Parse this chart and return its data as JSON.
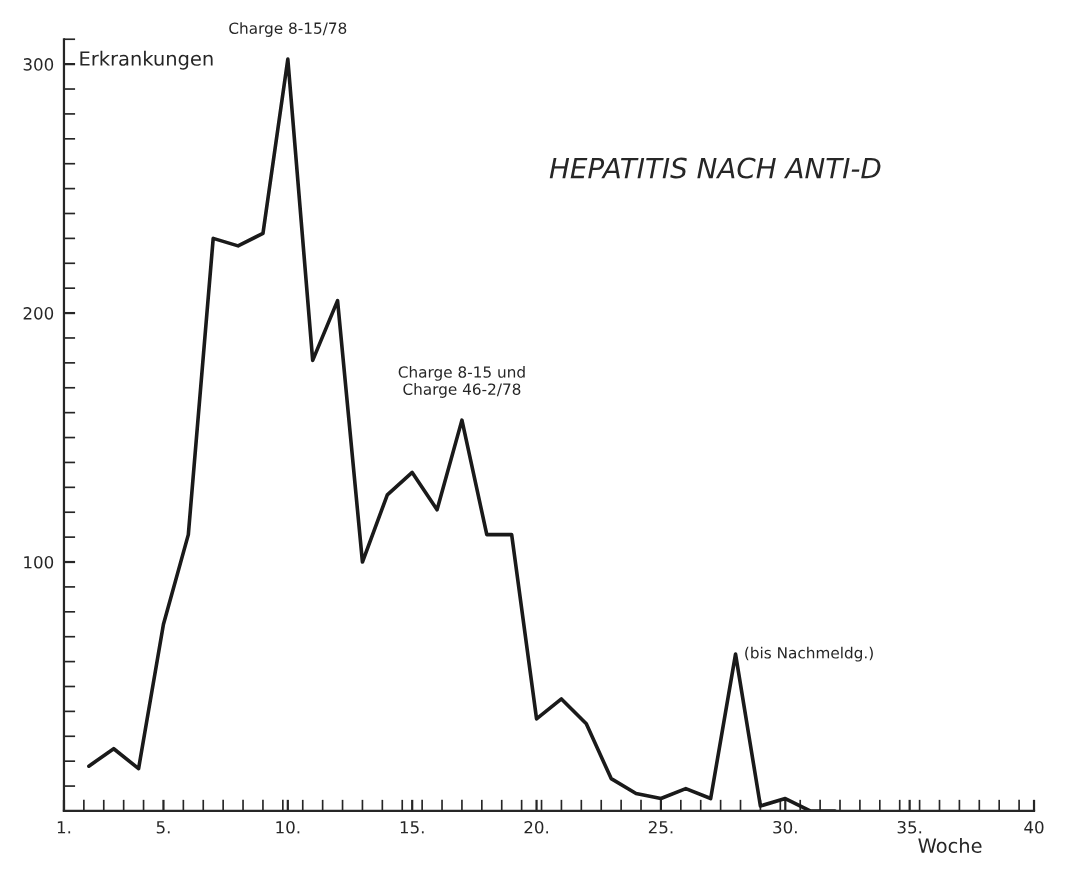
{
  "chart_data": {
    "type": "line",
    "title": "HEPATITIS NACH ANTI-D",
    "xlabel": "Woche",
    "ylabel": "Erkrankungen",
    "x": [
      2,
      3,
      4,
      5,
      6,
      7,
      8,
      9,
      10,
      11,
      12,
      13,
      14,
      15,
      16,
      17,
      18,
      19,
      20,
      21,
      22,
      23,
      24,
      25,
      26,
      27,
      28,
      29,
      30,
      31,
      32
    ],
    "series": [
      {
        "color": "#1a1a1a",
        "values": [
          18,
          25,
          17,
          75,
          111,
          230,
          227,
          232,
          302,
          181,
          205,
          100,
          127,
          136,
          121,
          157,
          111,
          111,
          37,
          45,
          35,
          13,
          7,
          5,
          9,
          5,
          63,
          2,
          5,
          0,
          0
        ]
      }
    ],
    "xlim": [
      1,
      40
    ],
    "xticks": [
      {
        "value": 1,
        "label": "1."
      },
      {
        "value": 5,
        "label": "5."
      },
      {
        "value": 10,
        "label": "10."
      },
      {
        "value": 15,
        "label": "15."
      },
      {
        "value": 20,
        "label": "20."
      },
      {
        "value": 25,
        "label": "25."
      },
      {
        "value": 30,
        "label": "30."
      },
      {
        "value": 35,
        "label": "35."
      },
      {
        "value": 40,
        "label": "40"
      }
    ],
    "ylim": [
      0,
      310
    ],
    "yticks": [
      100,
      200,
      300
    ],
    "annotations": [
      {
        "text": "Charge 8-15/78",
        "x": 10,
        "y": 302
      },
      {
        "text": "Charge 8-15 und\nCharge 46-2/78",
        "x": 17,
        "y": 157
      },
      {
        "text": "(bis Nachmeldg.)",
        "x": 28,
        "y": 63
      }
    ],
    "grid": false,
    "legend": false,
    "marker": "none",
    "line_style": "solid"
  }
}
